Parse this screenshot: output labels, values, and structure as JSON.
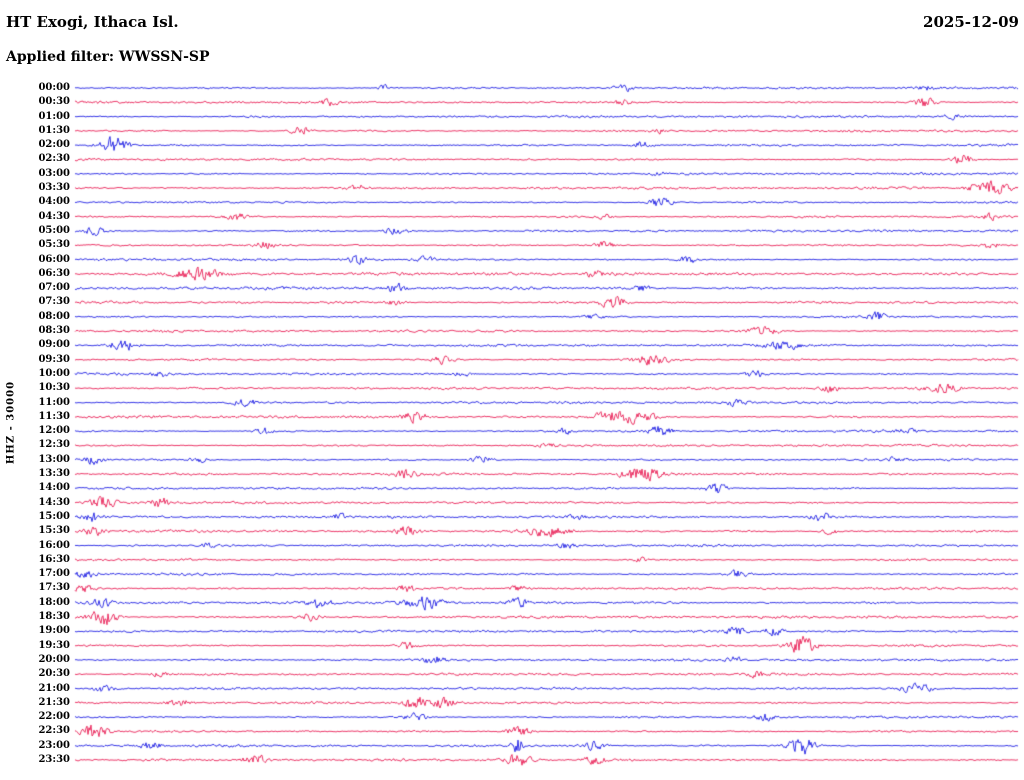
{
  "header": {
    "station_title": "HT Exogi, Ithaca Isl.",
    "date": "2025-12-09",
    "filter_label": "Applied filter: WWSSN-SP"
  },
  "axis": {
    "scale_label": "HHZ - 30000"
  },
  "palette": {
    "trace_blue": "#0000e0",
    "trace_red": "#e60040",
    "text": "#000000",
    "background": "#ffffff"
  },
  "chart_data": {
    "type": "line",
    "subtype": "helicorder-seismogram",
    "title": "HT Exogi, Ithaca Isl.",
    "date": "2025-12-09",
    "filter": "WWSSN-SP",
    "channel": "HHZ",
    "scale": 30000,
    "minutes_per_row": 30,
    "rows_total": 48,
    "color_pattern": [
      "blue",
      "red"
    ],
    "rows": [
      {
        "time": "00:00",
        "color": "blue",
        "events": [
          [
            0.33,
            3
          ],
          [
            0.58,
            4
          ],
          [
            0.9,
            2
          ]
        ]
      },
      {
        "time": "00:30",
        "color": "red",
        "events": [
          [
            0.27,
            3
          ],
          [
            0.58,
            3
          ],
          [
            0.9,
            5
          ]
        ]
      },
      {
        "time": "01:00",
        "color": "blue",
        "events": [
          [
            0.93,
            2.5
          ]
        ]
      },
      {
        "time": "01:30",
        "color": "red",
        "events": [
          [
            0.24,
            4
          ],
          [
            0.62,
            2
          ]
        ]
      },
      {
        "time": "02:00",
        "color": "blue",
        "events": [
          [
            0.04,
            8
          ],
          [
            0.6,
            3.5
          ]
        ]
      },
      {
        "time": "02:30",
        "color": "red",
        "events": [
          [
            0.94,
            4.5
          ]
        ]
      },
      {
        "time": "03:00",
        "color": "blue",
        "events": [
          [
            0.62,
            2
          ]
        ]
      },
      {
        "time": "03:30",
        "color": "red",
        "events": [
          [
            0.3,
            3.5
          ],
          [
            0.97,
            7,
            14
          ]
        ]
      },
      {
        "time": "04:00",
        "color": "blue",
        "events": [
          [
            0.62,
            5
          ]
        ]
      },
      {
        "time": "04:30",
        "color": "red",
        "events": [
          [
            0.17,
            3.5
          ],
          [
            0.56,
            2.5
          ],
          [
            0.97,
            3
          ]
        ]
      },
      {
        "time": "05:00",
        "color": "blue",
        "events": [
          [
            0.02,
            4
          ],
          [
            0.34,
            4.5
          ]
        ]
      },
      {
        "time": "05:30",
        "color": "red",
        "events": [
          [
            0.2,
            3.5
          ],
          [
            0.56,
            3.5
          ],
          [
            0.97,
            3
          ]
        ]
      },
      {
        "time": "06:00",
        "color": "blue",
        "events": [
          [
            0.3,
            4
          ],
          [
            0.37,
            3
          ],
          [
            0.65,
            3.5
          ]
        ]
      },
      {
        "time": "06:30",
        "color": "red",
        "busy": 1.3,
        "events": [
          [
            0.13,
            6,
            16
          ],
          [
            0.55,
            3
          ]
        ]
      },
      {
        "time": "07:00",
        "color": "blue",
        "busy": 1.3,
        "events": [
          [
            0.34,
            4
          ],
          [
            0.6,
            3
          ]
        ]
      },
      {
        "time": "07:30",
        "color": "red",
        "busy": 1.3,
        "events": [
          [
            0.34,
            3
          ],
          [
            0.57,
            6
          ]
        ]
      },
      {
        "time": "08:00",
        "color": "blue",
        "events": [
          [
            0.55,
            3
          ],
          [
            0.85,
            4
          ]
        ]
      },
      {
        "time": "08:30",
        "color": "red",
        "events": [
          [
            0.73,
            4,
            12
          ]
        ]
      },
      {
        "time": "09:00",
        "color": "blue",
        "events": [
          [
            0.05,
            6
          ],
          [
            0.75,
            4,
            14
          ]
        ]
      },
      {
        "time": "09:30",
        "color": "red",
        "events": [
          [
            0.39,
            4
          ],
          [
            0.61,
            5,
            14
          ]
        ]
      },
      {
        "time": "10:00",
        "color": "blue",
        "events": [
          [
            0.09,
            3
          ],
          [
            0.41,
            3
          ],
          [
            0.72,
            4
          ]
        ]
      },
      {
        "time": "10:30",
        "color": "red",
        "events": [
          [
            0.8,
            4
          ],
          [
            0.92,
            4,
            12
          ]
        ]
      },
      {
        "time": "11:00",
        "color": "blue",
        "events": [
          [
            0.18,
            4
          ],
          [
            0.7,
            3
          ]
        ]
      },
      {
        "time": "11:30",
        "color": "red",
        "busy": 1.2,
        "events": [
          [
            0.36,
            5
          ],
          [
            0.58,
            6,
            22
          ]
        ]
      },
      {
        "time": "12:00",
        "color": "blue",
        "events": [
          [
            0.2,
            3
          ],
          [
            0.52,
            3
          ],
          [
            0.62,
            5
          ],
          [
            0.88,
            3
          ]
        ]
      },
      {
        "time": "12:30",
        "color": "red",
        "events": [
          [
            0.5,
            2.5
          ]
        ]
      },
      {
        "time": "13:00",
        "color": "blue",
        "events": [
          [
            0.02,
            4
          ],
          [
            0.13,
            3
          ],
          [
            0.43,
            4
          ],
          [
            0.87,
            3
          ]
        ]
      },
      {
        "time": "13:30",
        "color": "red",
        "events": [
          [
            0.35,
            4
          ],
          [
            0.6,
            7,
            13
          ]
        ]
      },
      {
        "time": "14:00",
        "color": "blue",
        "events": [
          [
            0.68,
            5
          ]
        ]
      },
      {
        "time": "14:30",
        "color": "red",
        "events": [
          [
            0.03,
            6
          ],
          [
            0.09,
            5
          ]
        ]
      },
      {
        "time": "15:00",
        "color": "blue",
        "events": [
          [
            0.02,
            5
          ],
          [
            0.28,
            3
          ],
          [
            0.53,
            3
          ],
          [
            0.79,
            4
          ]
        ]
      },
      {
        "time": "15:30",
        "color": "red",
        "busy": 1.2,
        "events": [
          [
            0.02,
            4
          ],
          [
            0.35,
            4
          ],
          [
            0.5,
            5,
            16
          ],
          [
            0.8,
            3
          ]
        ]
      },
      {
        "time": "16:00",
        "color": "blue",
        "events": [
          [
            0.14,
            3
          ],
          [
            0.52,
            3
          ]
        ]
      },
      {
        "time": "16:30",
        "color": "red",
        "events": [
          [
            0.6,
            2
          ]
        ]
      },
      {
        "time": "17:00",
        "color": "blue",
        "events": [
          [
            0.01,
            4
          ],
          [
            0.7,
            4
          ]
        ]
      },
      {
        "time": "17:30",
        "color": "red",
        "events": [
          [
            0.01,
            4
          ],
          [
            0.35,
            4
          ],
          [
            0.47,
            3
          ]
        ]
      },
      {
        "time": "18:00",
        "color": "blue",
        "busy": 1.2,
        "events": [
          [
            0.03,
            4
          ],
          [
            0.26,
            4
          ],
          [
            0.37,
            6,
            13
          ],
          [
            0.47,
            4
          ]
        ]
      },
      {
        "time": "18:30",
        "color": "red",
        "busy": 1.2,
        "events": [
          [
            0.03,
            8,
            10
          ],
          [
            0.25,
            3
          ]
        ]
      },
      {
        "time": "19:00",
        "color": "blue",
        "events": [
          [
            0.7,
            4
          ],
          [
            0.74,
            4
          ]
        ]
      },
      {
        "time": "19:30",
        "color": "red",
        "events": [
          [
            0.35,
            4
          ],
          [
            0.77,
            10,
            9
          ]
        ]
      },
      {
        "time": "20:00",
        "color": "blue",
        "events": [
          [
            0.38,
            4
          ],
          [
            0.7,
            3
          ]
        ]
      },
      {
        "time": "20:30",
        "color": "red",
        "events": [
          [
            0.09,
            3
          ],
          [
            0.72,
            3
          ]
        ]
      },
      {
        "time": "21:00",
        "color": "blue",
        "events": [
          [
            0.03,
            4
          ],
          [
            0.89,
            5,
            11
          ]
        ]
      },
      {
        "time": "21:30",
        "color": "red",
        "events": [
          [
            0.11,
            4
          ],
          [
            0.36,
            7,
            7
          ],
          [
            0.39,
            5
          ]
        ]
      },
      {
        "time": "22:00",
        "color": "blue",
        "events": [
          [
            0.36,
            4
          ],
          [
            0.73,
            4
          ]
        ]
      },
      {
        "time": "22:30",
        "color": "red",
        "events": [
          [
            0.02,
            7,
            9
          ],
          [
            0.47,
            5
          ]
        ]
      },
      {
        "time": "23:00",
        "color": "blue",
        "events": [
          [
            0.08,
            4
          ],
          [
            0.47,
            8,
            5
          ],
          [
            0.55,
            4
          ],
          [
            0.77,
            9,
            9
          ]
        ]
      },
      {
        "time": "23:30",
        "color": "red",
        "events": [
          [
            0.19,
            5
          ],
          [
            0.47,
            6
          ],
          [
            0.55,
            4
          ]
        ]
      }
    ]
  }
}
